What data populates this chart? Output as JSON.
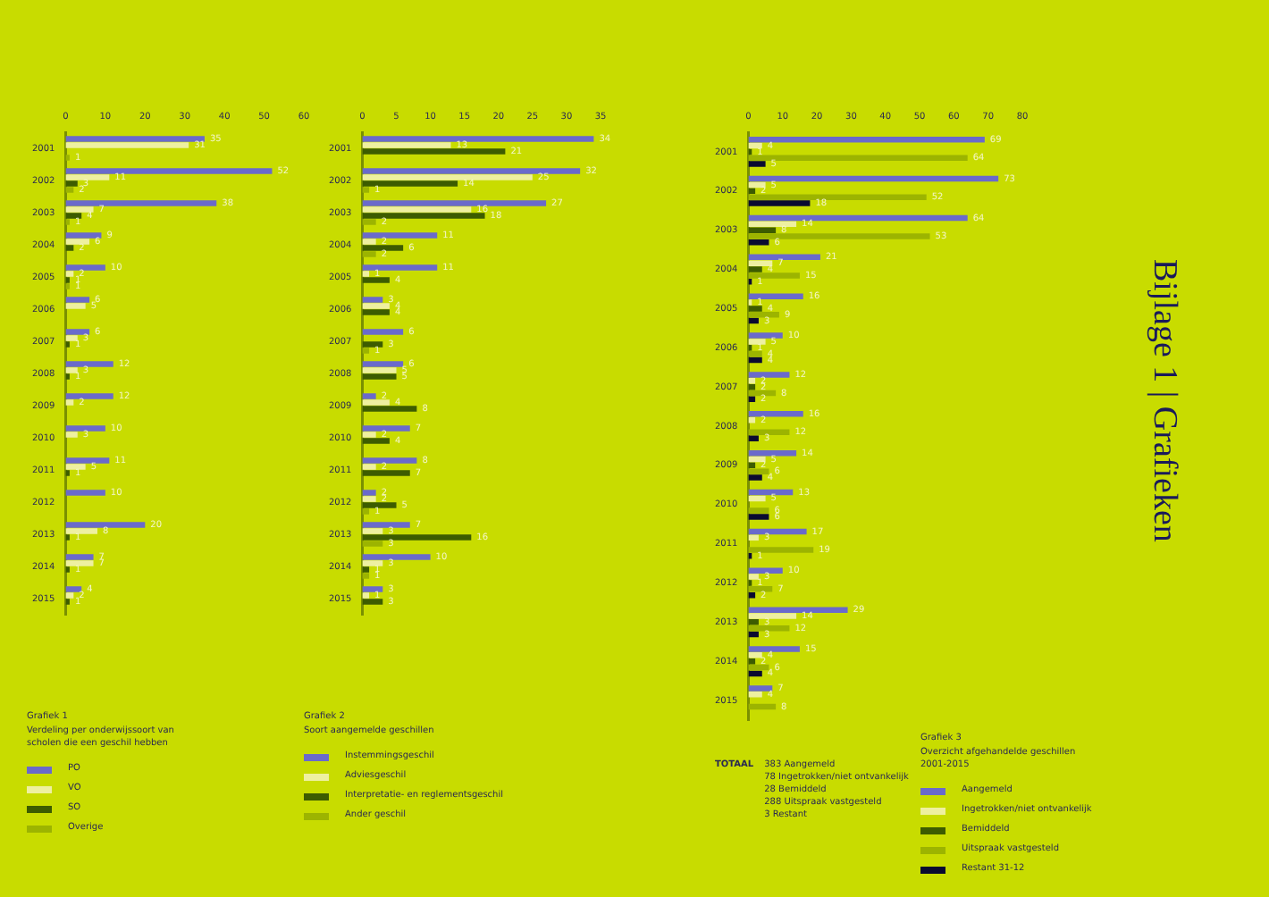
{
  "chart_data": [
    {
      "type": "bar",
      "orientation": "horizontal",
      "title": "Grafiek 1",
      "subtitle": "Verdeling per onderwijssoort van scholen die een geschil hebben",
      "categories": [
        "2001",
        "2002",
        "2003",
        "2004",
        "2005",
        "2006",
        "2007",
        "2008",
        "2009",
        "2010",
        "2011",
        "2012",
        "2013",
        "2014",
        "2015"
      ],
      "xlim": [
        0,
        60
      ],
      "xticks": [
        0,
        10,
        20,
        30,
        40,
        50,
        60
      ],
      "legend": "bottom left",
      "data_labels": true,
      "series": [
        {
          "name": "PO",
          "color": "#6a6acb",
          "values": [
            35,
            52,
            38,
            9,
            10,
            6,
            6,
            12,
            12,
            10,
            11,
            10,
            20,
            7,
            4
          ]
        },
        {
          "name": "VO",
          "color": "#eef0a0",
          "values": [
            31,
            11,
            7,
            6,
            2,
            5,
            3,
            3,
            2,
            3,
            5,
            null,
            8,
            7,
            2
          ]
        },
        {
          "name": "SO",
          "color": "#3d5c00",
          "values": [
            null,
            3,
            4,
            2,
            1,
            null,
            1,
            1,
            null,
            null,
            1,
            null,
            1,
            1,
            1
          ]
        },
        {
          "name": "Overige",
          "color": "#9cb400",
          "values": [
            1,
            2,
            1,
            null,
            1,
            null,
            null,
            null,
            null,
            null,
            null,
            null,
            null,
            null,
            null
          ]
        }
      ]
    },
    {
      "type": "bar",
      "orientation": "horizontal",
      "title": "Grafiek 2",
      "subtitle": "Soort aangemelde geschillen",
      "categories": [
        "2001",
        "2002",
        "2003",
        "2004",
        "2005",
        "2006",
        "2007",
        "2008",
        "2009",
        "2010",
        "2011",
        "2012",
        "2013",
        "2014",
        "2015"
      ],
      "xlim": [
        0,
        35
      ],
      "xticks": [
        0,
        5,
        10,
        15,
        20,
        25,
        30,
        35
      ],
      "legend": "bottom left",
      "data_labels": true,
      "series": [
        {
          "name": "Instemmingsgeschil",
          "color": "#6a6acb",
          "values": [
            34,
            32,
            27,
            11,
            11,
            3,
            6,
            6,
            2,
            7,
            8,
            2,
            7,
            10,
            3
          ]
        },
        {
          "name": "Adviesgeschil",
          "color": "#eef0a0",
          "values": [
            13,
            25,
            16,
            2,
            1,
            4,
            null,
            5,
            4,
            2,
            2,
            2,
            3,
            3,
            1
          ]
        },
        {
          "name": "Interpretatie- en reglementsgeschil",
          "color": "#3d5c00",
          "values": [
            21,
            14,
            18,
            6,
            4,
            4,
            3,
            5,
            8,
            4,
            7,
            5,
            16,
            1,
            3
          ]
        },
        {
          "name": "Ander geschil",
          "color": "#9cb400",
          "values": [
            null,
            1,
            2,
            2,
            null,
            null,
            1,
            null,
            null,
            null,
            null,
            1,
            3,
            1,
            null
          ]
        }
      ]
    },
    {
      "type": "bar",
      "orientation": "horizontal",
      "title": "Grafiek 3",
      "subtitle": "Overzicht afgehandelde geschillen 2001-2015",
      "categories": [
        "2001",
        "2002",
        "2003",
        "2004",
        "2005",
        "2006",
        "2007",
        "2008",
        "2009",
        "2010",
        "2011",
        "2012",
        "2013",
        "2014",
        "2015"
      ],
      "xlim": [
        0,
        80
      ],
      "xticks": [
        0,
        10,
        20,
        30,
        40,
        50,
        60,
        70,
        80
      ],
      "legend": "bottom right",
      "data_labels": true,
      "annotations": [
        "Bijlage 1 | Grafieken",
        "TOTAAL",
        "383 Aangemeld",
        "78 Ingetrokken/niet ontvankelijk",
        "28 Bemiddeld",
        "288 Uitspraak vastgesteld",
        "3 Restant"
      ],
      "series": [
        {
          "name": "Aangemeld",
          "color": "#6a6acb",
          "values": [
            69,
            73,
            64,
            21,
            16,
            10,
            12,
            16,
            14,
            13,
            17,
            10,
            29,
            15,
            7
          ]
        },
        {
          "name": "Ingetrokken/niet ontvankelijk",
          "color": "#eef0a0",
          "values": [
            4,
            5,
            14,
            7,
            1,
            5,
            2,
            2,
            5,
            5,
            3,
            3,
            14,
            4,
            4
          ]
        },
        {
          "name": "Bemiddeld",
          "color": "#3d5c00",
          "values": [
            1,
            2,
            8,
            4,
            4,
            1,
            2,
            null,
            2,
            null,
            null,
            1,
            3,
            2,
            null
          ]
        },
        {
          "name": "Uitspraak vastgesteld",
          "color": "#9cb400",
          "values": [
            64,
            52,
            53,
            15,
            9,
            4,
            8,
            12,
            6,
            6,
            19,
            7,
            12,
            6,
            8
          ]
        },
        {
          "name": "Restant 31-12",
          "color": "#0a0a30",
          "values": [
            5,
            18,
            6,
            1,
            3,
            4,
            2,
            3,
            4,
            6,
            1,
            2,
            3,
            4,
            null
          ]
        }
      ]
    }
  ]
}
